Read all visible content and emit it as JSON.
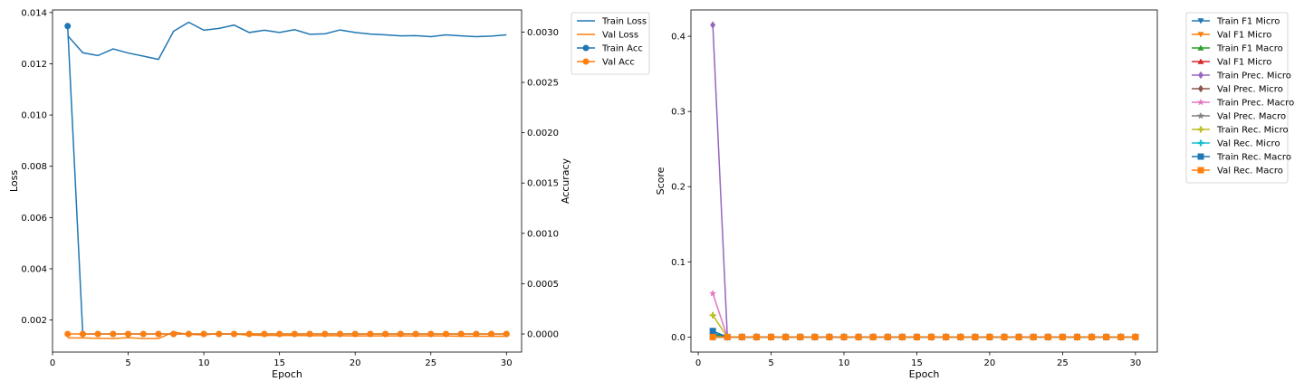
{
  "chart_data": [
    {
      "type": "line",
      "xlabel": "Epoch",
      "ylabel": "Loss",
      "y2label": "Accuracy",
      "xlim": [
        0,
        31
      ],
      "ylim": [
        0.00075,
        0.0141
      ],
      "y2lim": [
        -0.00018,
        0.00322
      ],
      "xticks": [
        0,
        5,
        10,
        15,
        20,
        25,
        30
      ],
      "yticks": [
        0.002,
        0.004,
        0.006,
        0.008,
        0.01,
        0.012,
        0.014
      ],
      "y2ticks": [
        0.0,
        0.0005,
        0.001,
        0.0015,
        0.002,
        0.0025,
        0.003
      ],
      "xtick_labels": [
        "0",
        "5",
        "10",
        "15",
        "20",
        "25",
        "30"
      ],
      "ytick_labels": [
        "0.002",
        "0.004",
        "0.006",
        "0.008",
        "0.010",
        "0.012",
        "0.014"
      ],
      "y2tick_labels": [
        "0.0000",
        "0.0005",
        "0.0010",
        "0.0015",
        "0.0020",
        "0.0025",
        "0.0030"
      ],
      "legend_position": "outside-right-top",
      "x": [
        1,
        2,
        3,
        4,
        5,
        6,
        7,
        8,
        9,
        10,
        11,
        12,
        13,
        14,
        15,
        16,
        17,
        18,
        19,
        20,
        21,
        22,
        23,
        24,
        25,
        26,
        27,
        28,
        29,
        30
      ],
      "series": [
        {
          "name": "Train Loss",
          "axis": "left",
          "color": "#1f77b4",
          "marker": "none",
          "values": [
            0.0131,
            0.01243,
            0.01232,
            0.01258,
            0.01242,
            0.0123,
            0.01217,
            0.01327,
            0.01362,
            0.01331,
            0.01338,
            0.01351,
            0.01322,
            0.01331,
            0.01322,
            0.01333,
            0.01315,
            0.01317,
            0.01332,
            0.01322,
            0.01316,
            0.01313,
            0.01309,
            0.0131,
            0.01306,
            0.01313,
            0.01309,
            0.01306,
            0.01308,
            0.01313
          ]
        },
        {
          "name": "Val Loss",
          "axis": "left",
          "color": "#ff7f0e",
          "marker": "none",
          "values": [
            0.0013,
            0.0013,
            0.00129,
            0.00128,
            0.00131,
            0.00128,
            0.00128,
            0.00153,
            0.00144,
            0.00142,
            0.00147,
            0.00145,
            0.00141,
            0.0014,
            0.0014,
            0.0014,
            0.00139,
            0.00139,
            0.00139,
            0.00138,
            0.00138,
            0.00138,
            0.00138,
            0.00138,
            0.00138,
            0.00138,
            0.00137,
            0.00137,
            0.00137,
            0.00137
          ]
        },
        {
          "name": "Train Acc",
          "axis": "right",
          "color": "#1f77b4",
          "marker": "circle",
          "values": [
            0.00306,
            0,
            0,
            0,
            0,
            0,
            0,
            0,
            0,
            0,
            0,
            0,
            0,
            0,
            0,
            0,
            0,
            0,
            0,
            0,
            0,
            0,
            0,
            0,
            0,
            0,
            0,
            0,
            0,
            0
          ]
        },
        {
          "name": "Val Acc",
          "axis": "right",
          "color": "#ff7f0e",
          "marker": "circle",
          "values": [
            0,
            0,
            0,
            0,
            0,
            0,
            0,
            0,
            0,
            0,
            0,
            0,
            0,
            0,
            0,
            0,
            0,
            0,
            0,
            0,
            0,
            0,
            0,
            0,
            0,
            0,
            0,
            0,
            0,
            0
          ]
        }
      ]
    },
    {
      "type": "line",
      "xlabel": "Epoch",
      "ylabel": "Score",
      "xlim": [
        -0.5,
        31.5
      ],
      "ylim": [
        -0.02,
        0.435
      ],
      "xticks": [
        0,
        5,
        10,
        15,
        20,
        25,
        30
      ],
      "yticks": [
        0.0,
        0.1,
        0.2,
        0.3,
        0.4
      ],
      "xtick_labels": [
        "0",
        "5",
        "10",
        "15",
        "20",
        "25",
        "30"
      ],
      "ytick_labels": [
        "0.0",
        "0.1",
        "0.2",
        "0.3",
        "0.4"
      ],
      "legend_position": "outside-right-top",
      "x": [
        1,
        2,
        3,
        4,
        5,
        6,
        7,
        8,
        9,
        10,
        11,
        12,
        13,
        14,
        15,
        16,
        17,
        18,
        19,
        20,
        21,
        22,
        23,
        24,
        25,
        26,
        27,
        28,
        29,
        30
      ],
      "series": [
        {
          "name": "Train F1 Micro",
          "color": "#1f77b4",
          "marker": "tri-down",
          "values": [
            0.005,
            0,
            0,
            0,
            0,
            0,
            0,
            0,
            0,
            0,
            0,
            0,
            0,
            0,
            0,
            0,
            0,
            0,
            0,
            0,
            0,
            0,
            0,
            0,
            0,
            0,
            0,
            0,
            0,
            0
          ]
        },
        {
          "name": "Val F1 Micro",
          "color": "#ff7f0e",
          "marker": "tri-down",
          "values": [
            0,
            0,
            0,
            0,
            0,
            0,
            0,
            0,
            0,
            0,
            0,
            0,
            0,
            0,
            0,
            0,
            0,
            0,
            0,
            0,
            0,
            0,
            0,
            0,
            0,
            0,
            0,
            0,
            0,
            0
          ]
        },
        {
          "name": "Train F1 Macro",
          "color": "#2ca02c",
          "marker": "tri-up",
          "values": [
            0.003,
            0,
            0,
            0,
            0,
            0,
            0,
            0,
            0,
            0,
            0,
            0,
            0,
            0,
            0,
            0,
            0,
            0,
            0,
            0,
            0,
            0,
            0,
            0,
            0,
            0,
            0,
            0,
            0,
            0
          ]
        },
        {
          "name": "Val F1 Micro",
          "color": "#d62728",
          "marker": "tri-up",
          "values": [
            0,
            0,
            0,
            0,
            0,
            0,
            0,
            0,
            0,
            0,
            0,
            0,
            0,
            0,
            0,
            0,
            0,
            0,
            0,
            0,
            0,
            0,
            0,
            0,
            0,
            0,
            0,
            0,
            0,
            0
          ]
        },
        {
          "name": "Train Prec. Micro",
          "color": "#9467bd",
          "marker": "diamond",
          "values": [
            0.415,
            0,
            0,
            0,
            0,
            0,
            0,
            0,
            0,
            0,
            0,
            0,
            0,
            0,
            0,
            0,
            0,
            0,
            0,
            0,
            0,
            0,
            0,
            0,
            0,
            0,
            0,
            0,
            0,
            0
          ]
        },
        {
          "name": "Val Prec. Micro",
          "color": "#8c564b",
          "marker": "diamond",
          "values": [
            0,
            0,
            0,
            0,
            0,
            0,
            0,
            0,
            0,
            0,
            0,
            0,
            0,
            0,
            0,
            0,
            0,
            0,
            0,
            0,
            0,
            0,
            0,
            0,
            0,
            0,
            0,
            0,
            0,
            0
          ]
        },
        {
          "name": "Train Prec. Macro",
          "color": "#e377c2",
          "marker": "star",
          "values": [
            0.058,
            0,
            0,
            0,
            0,
            0,
            0,
            0,
            0,
            0,
            0,
            0,
            0,
            0,
            0,
            0,
            0,
            0,
            0,
            0,
            0,
            0,
            0,
            0,
            0,
            0,
            0,
            0,
            0,
            0
          ]
        },
        {
          "name": "Val Prec. Macro",
          "color": "#7f7f7f",
          "marker": "star",
          "values": [
            0,
            0,
            0,
            0,
            0,
            0,
            0,
            0,
            0,
            0,
            0,
            0,
            0,
            0,
            0,
            0,
            0,
            0,
            0,
            0,
            0,
            0,
            0,
            0,
            0,
            0,
            0,
            0,
            0,
            0
          ]
        },
        {
          "name": "Train Rec. Micro",
          "color": "#bcbd22",
          "marker": "plus",
          "values": [
            0.029,
            0,
            0,
            0,
            0,
            0,
            0,
            0,
            0,
            0,
            0,
            0,
            0,
            0,
            0,
            0,
            0,
            0,
            0,
            0,
            0,
            0,
            0,
            0,
            0,
            0,
            0,
            0,
            0,
            0
          ]
        },
        {
          "name": "Val Rec. Micro",
          "color": "#17becf",
          "marker": "plus",
          "values": [
            0,
            0,
            0,
            0,
            0,
            0,
            0,
            0,
            0,
            0,
            0,
            0,
            0,
            0,
            0,
            0,
            0,
            0,
            0,
            0,
            0,
            0,
            0,
            0,
            0,
            0,
            0,
            0,
            0,
            0
          ]
        },
        {
          "name": "Train Rec. Macro",
          "color": "#1f77b4",
          "marker": "square",
          "values": [
            0.008,
            0,
            0,
            0,
            0,
            0,
            0,
            0,
            0,
            0,
            0,
            0,
            0,
            0,
            0,
            0,
            0,
            0,
            0,
            0,
            0,
            0,
            0,
            0,
            0,
            0,
            0,
            0,
            0,
            0
          ]
        },
        {
          "name": "Val Rec. Macro",
          "color": "#ff7f0e",
          "marker": "square",
          "values": [
            0,
            0,
            0,
            0,
            0,
            0,
            0,
            0,
            0,
            0,
            0,
            0,
            0,
            0,
            0,
            0,
            0,
            0,
            0,
            0,
            0,
            0,
            0,
            0,
            0,
            0,
            0,
            0,
            0,
            0
          ]
        }
      ]
    }
  ]
}
